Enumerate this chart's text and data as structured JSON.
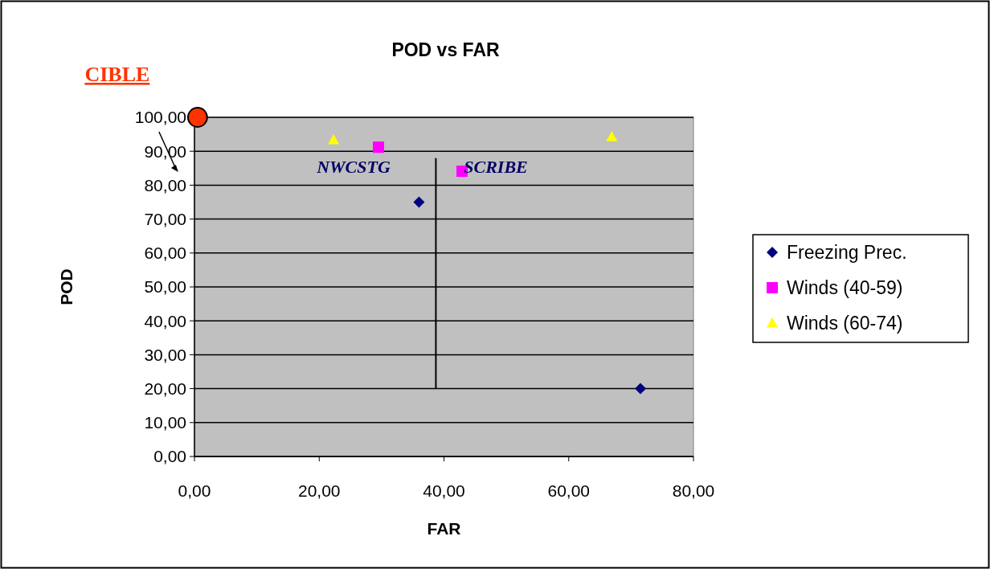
{
  "chart_data": {
    "type": "scatter",
    "title": "POD vs FAR",
    "xlabel": "FAR",
    "ylabel": "POD",
    "xlim": [
      0,
      80
    ],
    "xticks": [
      {
        "value": 0,
        "label": "0,00"
      },
      {
        "value": 20,
        "label": "20,00"
      },
      {
        "value": 40,
        "label": "40,00"
      },
      {
        "value": 60,
        "label": "60,00"
      },
      {
        "value": 80,
        "label": "80,00"
      }
    ],
    "ylim": [
      0,
      100
    ],
    "yticks": [
      {
        "value": 0,
        "label": "0,00"
      },
      {
        "value": 10,
        "label": "10,00"
      },
      {
        "value": 20,
        "label": "20,00"
      },
      {
        "value": 30,
        "label": "30,00"
      },
      {
        "value": 40,
        "label": "40,00"
      },
      {
        "value": 50,
        "label": "50,00"
      },
      {
        "value": 60,
        "label": "60,00"
      },
      {
        "value": 70,
        "label": "70,00"
      },
      {
        "value": 80,
        "label": "80,00"
      },
      {
        "value": 90,
        "label": "90,00"
      },
      {
        "value": 100,
        "label": "100,00"
      }
    ],
    "grid": "y",
    "legend": "right",
    "series": [
      {
        "name": "Freezing Prec.",
        "color": "#000080",
        "marker": "diamond",
        "x": [
          36,
          71.5
        ],
        "values": [
          75,
          20
        ]
      },
      {
        "name": "Winds (40-59)",
        "color": "#ff00ff",
        "marker": "square",
        "x": [
          29.5,
          42.9
        ],
        "values": [
          91.2,
          84.1
        ]
      },
      {
        "name": "Winds (60-74)",
        "color": "#ffff00",
        "marker": "triangle",
        "x": [
          22.3,
          66.9
        ],
        "values": [
          93.4,
          94.3
        ]
      },
      {
        "color": "#ff3300",
        "marker": "circle",
        "x": [
          0.5
        ],
        "values": [
          100
        ]
      },
      {
        "type": "line",
        "color": "#000000",
        "marker": "none",
        "x": [
          38.7,
          38.7
        ],
        "values": [
          20,
          88
        ]
      }
    ],
    "annotations": [
      {
        "text": "CIBLE",
        "x": 0.5,
        "y": 100
      },
      "NWCSTG",
      "SCRIBE"
    ]
  }
}
